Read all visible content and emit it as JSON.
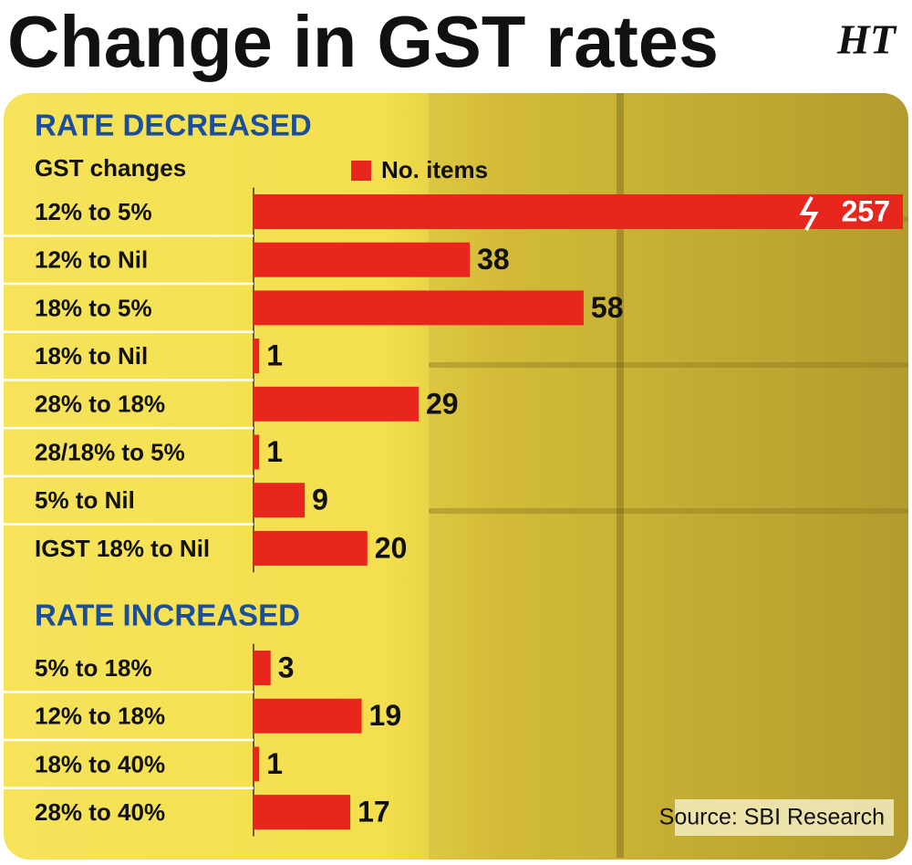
{
  "title": "Change in GST rates",
  "logo": "HT",
  "source": "Source: SBI Research",
  "chart_data": [
    {
      "type": "bar",
      "orientation": "horizontal",
      "title": "RATE DECREASED",
      "category_label": "GST changes",
      "categories": [
        "12% to 5%",
        "12% to Nil",
        "18% to 5%",
        "18% to Nil",
        "28% to 18%",
        "28/18% to 5%",
        "5% to Nil",
        "IGST 18% to Nil"
      ],
      "series": [
        {
          "name": "No. items",
          "color": "#e8261d",
          "values": [
            257,
            38,
            58,
            1,
            29,
            1,
            9,
            20
          ]
        }
      ]
    },
    {
      "type": "bar",
      "orientation": "horizontal",
      "title": "RATE INCREASED",
      "categories": [
        "5% to 18%",
        "12% to 18%",
        "18% to 40%",
        "28% to 40%"
      ],
      "series": [
        {
          "color": "#e8261d",
          "values": [
            3,
            19,
            1,
            17
          ]
        }
      ]
    }
  ]
}
